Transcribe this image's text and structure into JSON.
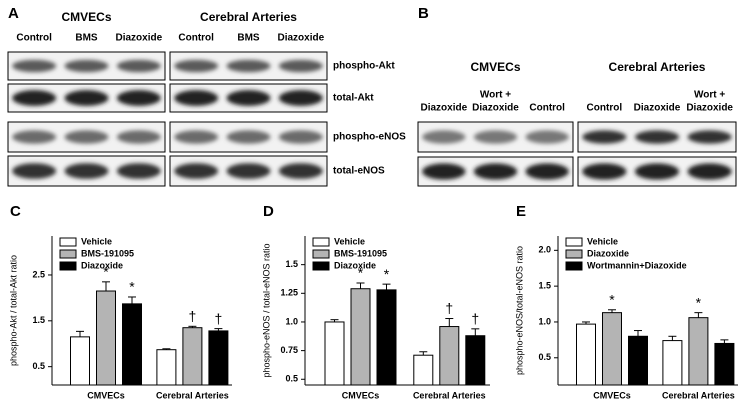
{
  "blots": {
    "A": {
      "label": "A",
      "groups": [
        {
          "title": "CMVECs",
          "lanes": [
            "Control",
            "BMS",
            "Diazoxide"
          ]
        },
        {
          "title": "Cerebral Arteries",
          "lanes": [
            "Control",
            "BMS",
            "Diazoxide"
          ]
        }
      ],
      "rows": [
        "phospho-Akt",
        "total-Akt",
        "phospho-eNOS",
        "total-eNOS"
      ]
    },
    "B": {
      "label": "B",
      "groups": [
        {
          "title": "CMVECs",
          "lanes": [
            [
              "Diazoxide"
            ],
            [
              "Wort +",
              "Diazoxide"
            ],
            [
              "Control"
            ]
          ]
        },
        {
          "title": "Cerebral Arteries",
          "lanes": [
            [
              "Control"
            ],
            [
              "Diazoxide"
            ],
            [
              "Wort +",
              "Diazoxide"
            ]
          ]
        }
      ]
    }
  },
  "chart_data": [
    {
      "type": "bar",
      "panel_label": "C",
      "y_label": "phospho-Akt / total-Akt ratio",
      "categories": [
        "CMVECs",
        "Cerebral Arteries"
      ],
      "series": [
        {
          "name": "Vehicle",
          "color": "#ffffff",
          "values": [
            1.15,
            0.87
          ],
          "errors": [
            0.12,
            0.02
          ],
          "markers": [
            null,
            null
          ]
        },
        {
          "name": "BMS-191095",
          "color": "#b4b4b4",
          "values": [
            2.15,
            1.35
          ],
          "errors": [
            0.2,
            0.03
          ],
          "markers": [
            "*",
            "†"
          ]
        },
        {
          "name": "Diazoxide",
          "color": "#000000",
          "values": [
            1.87,
            1.28
          ],
          "errors": [
            0.15,
            0.05
          ],
          "markers": [
            "*",
            "†"
          ]
        }
      ],
      "ylim": [
        0.1,
        3.35
      ],
      "yticks": [
        0.5,
        1.5,
        2.5
      ]
    },
    {
      "type": "bar",
      "panel_label": "D",
      "y_label": "phospho-eNOS / total-eNOS ratio",
      "categories": [
        "CMVECs",
        "Cerebral Arteries"
      ],
      "series": [
        {
          "name": "Vehicle",
          "color": "#ffffff",
          "values": [
            1.0,
            0.71
          ],
          "errors": [
            0.02,
            0.03
          ],
          "markers": [
            null,
            null
          ]
        },
        {
          "name": "BMS-191095",
          "color": "#b4b4b4",
          "values": [
            1.29,
            0.96
          ],
          "errors": [
            0.05,
            0.07
          ],
          "markers": [
            "*",
            "†"
          ]
        },
        {
          "name": "Diazoxide",
          "color": "#000000",
          "values": [
            1.28,
            0.88
          ],
          "errors": [
            0.05,
            0.06
          ],
          "markers": [
            "*",
            "†"
          ]
        }
      ],
      "ylim": [
        0.45,
        1.75
      ],
      "yticks": [
        {
          "value": 0.5,
          "label": "0.5"
        },
        0.75,
        {
          "value": 1,
          "label": "1.0"
        },
        1.25,
        1.5
      ]
    },
    {
      "type": "bar",
      "panel_label": "E",
      "y_label": "phospho-eNOS/total-eNOS ratio",
      "categories": [
        "CMVECs",
        "Cerebral Arteries"
      ],
      "series": [
        {
          "name": "Vehicle",
          "color": "#ffffff",
          "values": [
            0.97,
            0.74
          ],
          "errors": [
            0.03,
            0.06
          ],
          "markers": [
            null,
            null
          ]
        },
        {
          "name": "Diazoxide",
          "color": "#b4b4b4",
          "values": [
            1.13,
            1.06
          ],
          "errors": [
            0.04,
            0.07
          ],
          "markers": [
            "*",
            "*"
          ]
        },
        {
          "name": "Wortmannin+Diazoxide",
          "color": "#000000",
          "values": [
            0.8,
            0.7
          ],
          "errors": [
            0.08,
            0.05
          ],
          "markers": [
            null,
            null
          ]
        }
      ],
      "ylim": [
        0.12,
        2.2
      ],
      "yticks": [
        0.5,
        {
          "value": 1,
          "label": "1.0"
        },
        1.5,
        {
          "value": 2,
          "label": "2.0"
        }
      ]
    }
  ]
}
